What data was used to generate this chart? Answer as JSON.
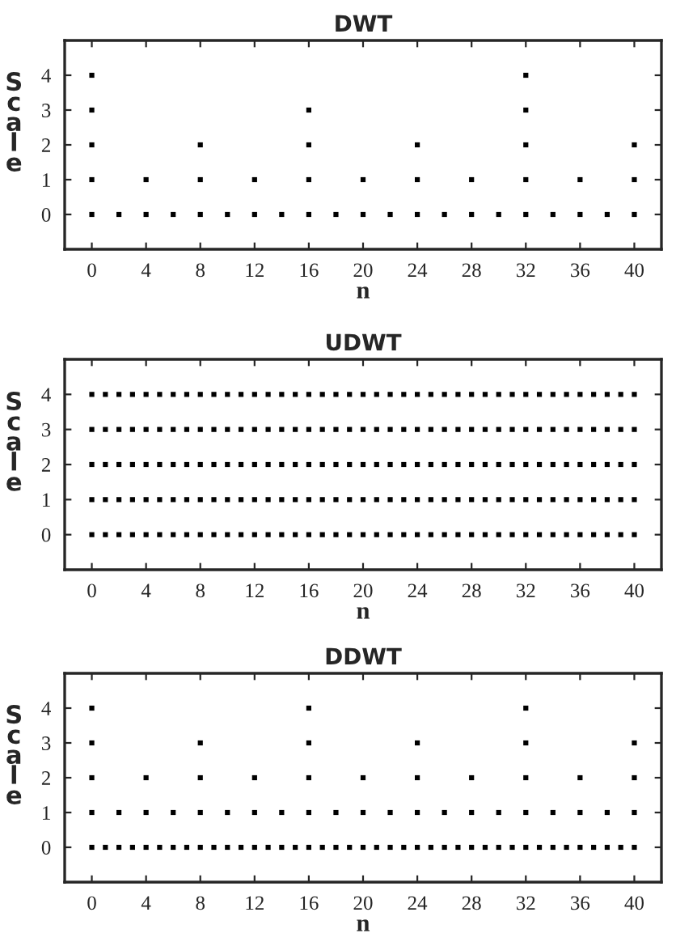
{
  "chart_data": [
    {
      "type": "scatter",
      "title": "DWT",
      "xlabel": "n",
      "ylabel": "Scale",
      "xlim": [
        -2,
        42
      ],
      "ylim": [
        -1,
        5
      ],
      "xticks": [
        0,
        4,
        8,
        12,
        16,
        20,
        24,
        28,
        32,
        36,
        40
      ],
      "yticks": [
        0,
        1,
        2,
        3,
        4
      ],
      "grid": false,
      "marker": "square",
      "series": [
        {
          "color": "#000000",
          "x": [
            0,
            2,
            4,
            6,
            8,
            10,
            12,
            14,
            16,
            18,
            20,
            22,
            24,
            26,
            28,
            30,
            32,
            34,
            36,
            38,
            40
          ],
          "values": [
            0,
            0,
            0,
            0,
            0,
            0,
            0,
            0,
            0,
            0,
            0,
            0,
            0,
            0,
            0,
            0,
            0,
            0,
            0,
            0,
            0
          ]
        },
        {
          "color": "#000000",
          "x": [
            0,
            4,
            8,
            12,
            16,
            20,
            24,
            28,
            32,
            36,
            40
          ],
          "values": [
            1,
            1,
            1,
            1,
            1,
            1,
            1,
            1,
            1,
            1,
            1
          ]
        },
        {
          "color": "#000000",
          "x": [
            0,
            8,
            16,
            24,
            32,
            40
          ],
          "values": [
            2,
            2,
            2,
            2,
            2,
            2
          ]
        },
        {
          "color": "#000000",
          "x": [
            0,
            16,
            32
          ],
          "values": [
            3,
            3,
            3
          ]
        },
        {
          "color": "#000000",
          "x": [
            0,
            32
          ],
          "values": [
            4,
            4
          ]
        }
      ]
    },
    {
      "type": "scatter",
      "title": "UDWT",
      "xlabel": "n",
      "ylabel": "Scale",
      "xlim": [
        -2,
        42
      ],
      "ylim": [
        -1,
        5
      ],
      "xticks": [
        0,
        4,
        8,
        12,
        16,
        20,
        24,
        28,
        32,
        36,
        40
      ],
      "yticks": [
        0,
        1,
        2,
        3,
        4
      ],
      "grid": false,
      "marker": "square",
      "series": [
        {
          "color": "#000000",
          "x": [
            0,
            1,
            2,
            3,
            4,
            5,
            6,
            7,
            8,
            9,
            10,
            11,
            12,
            13,
            14,
            15,
            16,
            17,
            18,
            19,
            20,
            21,
            22,
            23,
            24,
            25,
            26,
            27,
            28,
            29,
            30,
            31,
            32,
            33,
            34,
            35,
            36,
            37,
            38,
            39,
            40
          ],
          "values": [
            0,
            0,
            0,
            0,
            0,
            0,
            0,
            0,
            0,
            0,
            0,
            0,
            0,
            0,
            0,
            0,
            0,
            0,
            0,
            0,
            0,
            0,
            0,
            0,
            0,
            0,
            0,
            0,
            0,
            0,
            0,
            0,
            0,
            0,
            0,
            0,
            0,
            0,
            0,
            0,
            0
          ]
        },
        {
          "color": "#000000",
          "x": [
            0,
            1,
            2,
            3,
            4,
            5,
            6,
            7,
            8,
            9,
            10,
            11,
            12,
            13,
            14,
            15,
            16,
            17,
            18,
            19,
            20,
            21,
            22,
            23,
            24,
            25,
            26,
            27,
            28,
            29,
            30,
            31,
            32,
            33,
            34,
            35,
            36,
            37,
            38,
            39,
            40
          ],
          "values": [
            1,
            1,
            1,
            1,
            1,
            1,
            1,
            1,
            1,
            1,
            1,
            1,
            1,
            1,
            1,
            1,
            1,
            1,
            1,
            1,
            1,
            1,
            1,
            1,
            1,
            1,
            1,
            1,
            1,
            1,
            1,
            1,
            1,
            1,
            1,
            1,
            1,
            1,
            1,
            1,
            1
          ]
        },
        {
          "color": "#000000",
          "x": [
            0,
            1,
            2,
            3,
            4,
            5,
            6,
            7,
            8,
            9,
            10,
            11,
            12,
            13,
            14,
            15,
            16,
            17,
            18,
            19,
            20,
            21,
            22,
            23,
            24,
            25,
            26,
            27,
            28,
            29,
            30,
            31,
            32,
            33,
            34,
            35,
            36,
            37,
            38,
            39,
            40
          ],
          "values": [
            2,
            2,
            2,
            2,
            2,
            2,
            2,
            2,
            2,
            2,
            2,
            2,
            2,
            2,
            2,
            2,
            2,
            2,
            2,
            2,
            2,
            2,
            2,
            2,
            2,
            2,
            2,
            2,
            2,
            2,
            2,
            2,
            2,
            2,
            2,
            2,
            2,
            2,
            2,
            2,
            2
          ]
        },
        {
          "color": "#000000",
          "x": [
            0,
            1,
            2,
            3,
            4,
            5,
            6,
            7,
            8,
            9,
            10,
            11,
            12,
            13,
            14,
            15,
            16,
            17,
            18,
            19,
            20,
            21,
            22,
            23,
            24,
            25,
            26,
            27,
            28,
            29,
            30,
            31,
            32,
            33,
            34,
            35,
            36,
            37,
            38,
            39,
            40
          ],
          "values": [
            3,
            3,
            3,
            3,
            3,
            3,
            3,
            3,
            3,
            3,
            3,
            3,
            3,
            3,
            3,
            3,
            3,
            3,
            3,
            3,
            3,
            3,
            3,
            3,
            3,
            3,
            3,
            3,
            3,
            3,
            3,
            3,
            3,
            3,
            3,
            3,
            3,
            3,
            3,
            3,
            3
          ]
        },
        {
          "color": "#000000",
          "x": [
            0,
            1,
            2,
            3,
            4,
            5,
            6,
            7,
            8,
            9,
            10,
            11,
            12,
            13,
            14,
            15,
            16,
            17,
            18,
            19,
            20,
            21,
            22,
            23,
            24,
            25,
            26,
            27,
            28,
            29,
            30,
            31,
            32,
            33,
            34,
            35,
            36,
            37,
            38,
            39,
            40
          ],
          "values": [
            4,
            4,
            4,
            4,
            4,
            4,
            4,
            4,
            4,
            4,
            4,
            4,
            4,
            4,
            4,
            4,
            4,
            4,
            4,
            4,
            4,
            4,
            4,
            4,
            4,
            4,
            4,
            4,
            4,
            4,
            4,
            4,
            4,
            4,
            4,
            4,
            4,
            4,
            4,
            4,
            4
          ]
        }
      ]
    },
    {
      "type": "scatter",
      "title": "DDWT",
      "xlabel": "n",
      "ylabel": "Scale",
      "xlim": [
        -2,
        42
      ],
      "ylim": [
        -1,
        5
      ],
      "xticks": [
        0,
        4,
        8,
        12,
        16,
        20,
        24,
        28,
        32,
        36,
        40
      ],
      "yticks": [
        0,
        1,
        2,
        3,
        4
      ],
      "grid": false,
      "marker": "square",
      "series": [
        {
          "color": "#000000",
          "x": [
            0,
            1,
            2,
            3,
            4,
            5,
            6,
            7,
            8,
            9,
            10,
            11,
            12,
            13,
            14,
            15,
            16,
            17,
            18,
            19,
            20,
            21,
            22,
            23,
            24,
            25,
            26,
            27,
            28,
            29,
            30,
            31,
            32,
            33,
            34,
            35,
            36,
            37,
            38,
            39,
            40
          ],
          "values": [
            0,
            0,
            0,
            0,
            0,
            0,
            0,
            0,
            0,
            0,
            0,
            0,
            0,
            0,
            0,
            0,
            0,
            0,
            0,
            0,
            0,
            0,
            0,
            0,
            0,
            0,
            0,
            0,
            0,
            0,
            0,
            0,
            0,
            0,
            0,
            0,
            0,
            0,
            0,
            0,
            0
          ]
        },
        {
          "color": "#000000",
          "x": [
            0,
            2,
            4,
            6,
            8,
            10,
            12,
            14,
            16,
            18,
            20,
            22,
            24,
            26,
            28,
            30,
            32,
            34,
            36,
            38,
            40
          ],
          "values": [
            1,
            1,
            1,
            1,
            1,
            1,
            1,
            1,
            1,
            1,
            1,
            1,
            1,
            1,
            1,
            1,
            1,
            1,
            1,
            1,
            1
          ]
        },
        {
          "color": "#000000",
          "x": [
            0,
            4,
            8,
            12,
            16,
            20,
            24,
            28,
            32,
            36,
            40
          ],
          "values": [
            2,
            2,
            2,
            2,
            2,
            2,
            2,
            2,
            2,
            2,
            2
          ]
        },
        {
          "color": "#000000",
          "x": [
            0,
            8,
            16,
            24,
            32,
            40
          ],
          "values": [
            3,
            3,
            3,
            3,
            3,
            3
          ]
        },
        {
          "color": "#000000",
          "x": [
            0,
            16,
            32
          ],
          "values": [
            4,
            4,
            4
          ]
        }
      ]
    }
  ]
}
